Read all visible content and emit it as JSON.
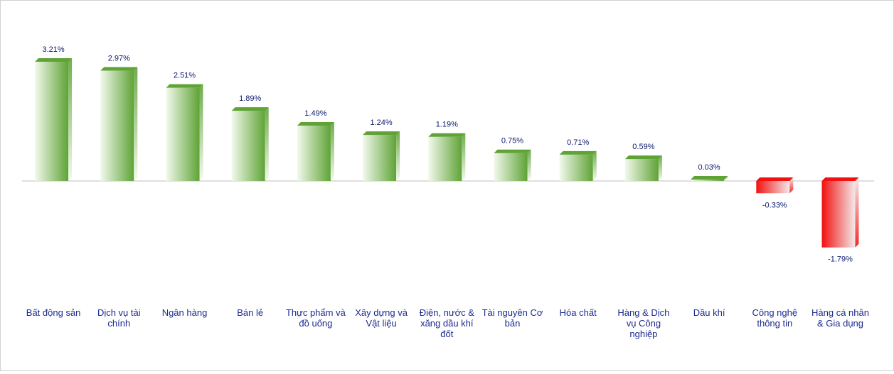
{
  "chart_data": {
    "type": "bar",
    "title": "",
    "xlabel": "",
    "ylabel": "",
    "categories": [
      [
        "Bất động sản"
      ],
      [
        "Dịch vụ tài",
        "chính"
      ],
      [
        "Ngân hàng"
      ],
      [
        "Bán lẻ"
      ],
      [
        "Thực phẩm và",
        "đồ uống"
      ],
      [
        "Xây dựng và",
        "Vật liệu"
      ],
      [
        "Điện, nước &",
        "xăng dầu khí",
        "đốt"
      ],
      [
        "Tài nguyên Cơ",
        "bản"
      ],
      [
        "Hóa chất"
      ],
      [
        "Hàng & Dịch",
        "vụ Công",
        "nghiệp"
      ],
      [
        "Dầu khí"
      ],
      [
        "Công nghệ",
        "thông tin"
      ],
      [
        "Hàng cá nhân",
        "& Gia dụng"
      ]
    ],
    "values": [
      3.21,
      2.97,
      2.51,
      1.89,
      1.49,
      1.24,
      1.19,
      0.75,
      0.71,
      0.59,
      0.03,
      -0.33,
      -1.79
    ],
    "value_labels": [
      "3.21%",
      "2.97%",
      "2.51%",
      "1.89%",
      "1.49%",
      "1.24%",
      "1.19%",
      "0.75%",
      "0.71%",
      "0.59%",
      "0.03%",
      "-0.33%",
      "-1.79%"
    ],
    "unit": "%",
    "ylim": [
      -1.79,
      3.21
    ],
    "grid": false,
    "legend": "none",
    "colors": {
      "positive_dark": "#5fa336",
      "positive_light": "#f2f9ec",
      "negative_dark": "#f21010",
      "negative_light": "#f4e8e8",
      "baseline": "#bfbfbf",
      "value_text": "#0d1a6e",
      "category_text": "#1c2a8f"
    }
  }
}
